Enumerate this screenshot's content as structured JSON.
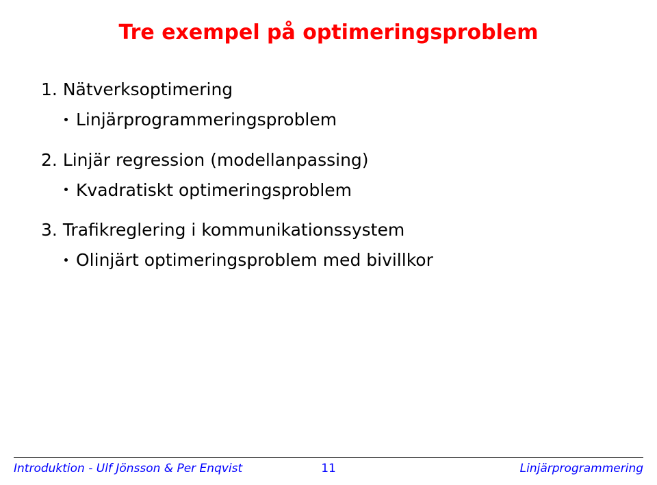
{
  "title": "Tre exempel på optimeringsproblem",
  "items": [
    {
      "num": "1.",
      "text": "Nätverksoptimering",
      "sub": "Linjärprogrammeringsproblem"
    },
    {
      "num": "2.",
      "text": "Linjär regression (modellanpassing)",
      "sub": "Kvadratiskt optimeringsproblem"
    },
    {
      "num": "3.",
      "text": "Trafikreglering i kommunikationssystem",
      "sub": "Olinjärt optimeringsproblem med bivillkor"
    }
  ],
  "footer": {
    "left": "Introduktion - Ulf Jönsson & Per Enqvist",
    "page": "11",
    "right": "Linjärprogrammering"
  },
  "colors": {
    "title": "#ff0000",
    "body": "#000000",
    "footer": "#0000ff",
    "background": "#ffffff",
    "rule": "#000000"
  },
  "fonts": {
    "title_size_pt": 22,
    "body_size_pt": 19,
    "footer_size_pt": 13
  }
}
